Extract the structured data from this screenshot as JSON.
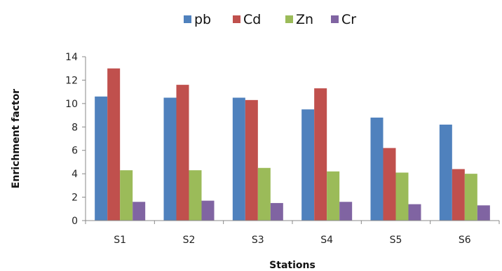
{
  "chart_data": {
    "type": "bar",
    "title": "",
    "xlabel": "Stations",
    "ylabel": "Enrichment factor",
    "categories": [
      "S1",
      "S2",
      "S3",
      "S4",
      "S5",
      "S6"
    ],
    "series": [
      {
        "name": "pb",
        "color": "#4F81BD",
        "values": [
          10.6,
          10.5,
          10.5,
          9.5,
          8.8,
          8.2
        ]
      },
      {
        "name": "Cd",
        "color": "#C0504D",
        "values": [
          13.0,
          11.6,
          10.3,
          11.3,
          6.2,
          4.4
        ]
      },
      {
        "name": "Zn",
        "color": "#9BBB59",
        "values": [
          4.3,
          4.3,
          4.5,
          4.2,
          4.1,
          4.0
        ]
      },
      {
        "name": "Cr",
        "color": "#8064A2",
        "values": [
          1.6,
          1.7,
          1.5,
          1.6,
          1.4,
          1.3
        ]
      }
    ],
    "ylim": [
      0,
      14
    ],
    "yticks": [
      0,
      2,
      4,
      6,
      8,
      10,
      12,
      14
    ],
    "grid": false,
    "legend_position": "top-center"
  }
}
